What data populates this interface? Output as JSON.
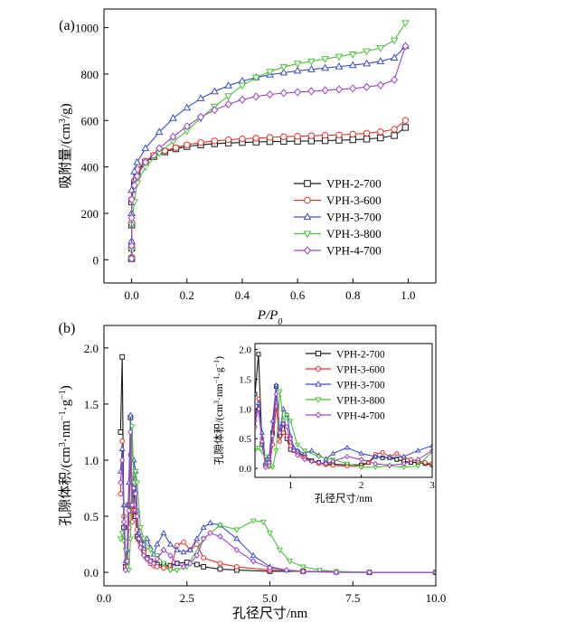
{
  "colors": {
    "VPH-2-700": "#1a1a1a",
    "VPH-3-600": "#e8332f",
    "VPH-3-700": "#3a4fc4",
    "VPH-3-800": "#4cc23a",
    "VPH-4-700": "#9b45c9"
  },
  "markers": {
    "VPH-2-700": "square",
    "VPH-3-600": "circle",
    "VPH-3-700": "triangle-up",
    "VPH-3-800": "triangle-down",
    "VPH-4-700": "diamond"
  },
  "chart_data": [
    {
      "panel_label": "(a)",
      "type": "line",
      "xlabel": "P/P0",
      "xlabel_main": "P/P",
      "xlabel_sub": "0",
      "ylabel": "吸附量/(cm3/g)",
      "ylabel_main": "吸附量/(cm",
      "ylabel_sup": "3",
      "ylabel_end": "/g)",
      "xlim": [
        -0.1,
        1.1
      ],
      "ylim": [
        -100,
        1080
      ],
      "xticks": [
        0.0,
        0.2,
        0.4,
        0.6,
        0.8,
        1.0
      ],
      "xtick_labels": [
        "0.0",
        "0.2",
        "0.4",
        "0.6",
        "0.8",
        "1.0"
      ],
      "yticks": [
        0,
        200,
        400,
        600,
        800,
        1000
      ],
      "ytick_labels": [
        "0",
        "200",
        "400",
        "600",
        "800",
        "1000"
      ],
      "legend": [
        "VPH-2-700",
        "VPH-3-600",
        "VPH-3-700",
        "VPH-3-800",
        "VPH-4-700"
      ],
      "legend_position": "right",
      "series": [
        {
          "name": "VPH-2-700",
          "x": [
            0.0,
            0.0,
            0.0,
            0.0,
            0.01,
            0.02,
            0.05,
            0.08,
            0.12,
            0.16,
            0.2,
            0.25,
            0.3,
            0.35,
            0.4,
            0.45,
            0.5,
            0.55,
            0.6,
            0.65,
            0.7,
            0.75,
            0.8,
            0.85,
            0.9,
            0.95,
            0.99
          ],
          "y": [
            5,
            50,
            150,
            250,
            330,
            380,
            420,
            445,
            465,
            478,
            488,
            495,
            500,
            503,
            505,
            507,
            509,
            510,
            511,
            512,
            513,
            515,
            517,
            520,
            525,
            535,
            570
          ]
        },
        {
          "name": "VPH-3-600",
          "x": [
            0.0,
            0.0,
            0.0,
            0.0,
            0.01,
            0.02,
            0.05,
            0.08,
            0.12,
            0.16,
            0.2,
            0.25,
            0.3,
            0.35,
            0.4,
            0.45,
            0.5,
            0.55,
            0.6,
            0.65,
            0.7,
            0.75,
            0.8,
            0.85,
            0.9,
            0.95,
            0.99
          ],
          "y": [
            10,
            60,
            160,
            260,
            340,
            390,
            425,
            450,
            470,
            483,
            495,
            505,
            512,
            517,
            521,
            524,
            527,
            530,
            532,
            534,
            536,
            538,
            541,
            545,
            551,
            562,
            600
          ]
        },
        {
          "name": "VPH-3-700",
          "x": [
            0.0,
            0.0,
            0.0,
            0.0,
            0.01,
            0.02,
            0.05,
            0.1,
            0.15,
            0.2,
            0.25,
            0.3,
            0.35,
            0.4,
            0.45,
            0.5,
            0.55,
            0.6,
            0.65,
            0.7,
            0.75,
            0.8,
            0.85,
            0.9,
            0.95,
            0.99
          ],
          "y": [
            10,
            80,
            200,
            300,
            380,
            420,
            480,
            550,
            610,
            655,
            695,
            725,
            750,
            770,
            785,
            797,
            806,
            814,
            820,
            826,
            832,
            838,
            845,
            855,
            870,
            920
          ]
        },
        {
          "name": "VPH-3-800",
          "x": [
            0.0,
            0.0,
            0.0,
            0.01,
            0.02,
            0.05,
            0.1,
            0.15,
            0.2,
            0.25,
            0.3,
            0.35,
            0.4,
            0.45,
            0.5,
            0.55,
            0.6,
            0.65,
            0.7,
            0.75,
            0.8,
            0.85,
            0.9,
            0.95,
            0.99
          ],
          "y": [
            5,
            40,
            150,
            250,
            330,
            400,
            460,
            510,
            555,
            610,
            660,
            705,
            750,
            785,
            810,
            830,
            845,
            855,
            865,
            875,
            885,
            898,
            912,
            945,
            1020
          ]
        },
        {
          "name": "VPH-4-700",
          "x": [
            0.0,
            0.0,
            0.0,
            0.0,
            0.01,
            0.02,
            0.05,
            0.1,
            0.15,
            0.2,
            0.25,
            0.3,
            0.35,
            0.4,
            0.45,
            0.5,
            0.55,
            0.6,
            0.65,
            0.7,
            0.75,
            0.8,
            0.85,
            0.9,
            0.95,
            0.99
          ],
          "y": [
            5,
            60,
            180,
            260,
            320,
            360,
            420,
            480,
            530,
            575,
            615,
            645,
            670,
            690,
            703,
            712,
            718,
            722,
            726,
            730,
            734,
            738,
            744,
            752,
            775,
            920
          ]
        }
      ]
    },
    {
      "panel_label": "(b)",
      "type": "line",
      "xlabel": "孔径尺寸/nm",
      "ylabel": "孔隙体积/(cm3·nm−1·g−1)",
      "ylabel_main": "孔隙体积/(cm",
      "ylabel_sup1": "3",
      "ylabel_mid": "·nm",
      "ylabel_sup2": "−1",
      "ylabel_mid2": "·g",
      "ylabel_sup3": "−1",
      "ylabel_end": ")",
      "xlim": [
        0,
        10
      ],
      "ylim": [
        -0.12,
        2.2
      ],
      "xticks": [
        0.0,
        2.5,
        5.0,
        7.5,
        10.0
      ],
      "xtick_labels": [
        "0.0",
        "2.5",
        "5.0",
        "7.5",
        "10.0"
      ],
      "yticks": [
        0.0,
        0.5,
        1.0,
        1.5,
        2.0
      ],
      "ytick_labels": [
        "0.0",
        "0.5",
        "1.0",
        "1.5",
        "2.0"
      ],
      "series": [
        {
          "name": "VPH-2-700",
          "x": [
            0.5,
            0.55,
            0.6,
            0.65,
            0.7,
            0.75,
            0.8,
            0.85,
            0.9,
            0.95,
            1.0,
            1.05,
            1.1,
            1.2,
            1.3,
            1.4,
            1.5,
            1.6,
            1.8,
            2.0,
            2.2,
            2.5,
            2.8,
            3.0,
            3.5,
            4.0,
            5.0,
            6.0,
            8.0,
            10.0
          ],
          "y": [
            1.25,
            1.92,
            0.4,
            0.05,
            0.1,
            0.6,
            1.38,
            0.55,
            0.75,
            0.5,
            0.32,
            0.3,
            0.28,
            0.2,
            0.13,
            0.1,
            0.08,
            0.07,
            0.06,
            0.06,
            0.08,
            0.09,
            0.07,
            0.05,
            0.03,
            0.02,
            0.01,
            0.01,
            0.0,
            0.0
          ]
        },
        {
          "name": "VPH-3-600",
          "x": [
            0.5,
            0.55,
            0.6,
            0.65,
            0.7,
            0.75,
            0.8,
            0.85,
            0.9,
            0.95,
            1.0,
            1.05,
            1.1,
            1.2,
            1.3,
            1.4,
            1.5,
            1.6,
            1.8,
            2.0,
            2.2,
            2.4,
            2.6,
            2.8,
            3.0,
            3.5,
            4.0,
            5.0,
            6.0,
            8.0,
            10.0
          ],
          "y": [
            0.7,
            1.17,
            0.5,
            0.05,
            0.03,
            0.4,
            1.05,
            0.45,
            0.6,
            0.55,
            0.38,
            0.3,
            0.25,
            0.18,
            0.12,
            0.08,
            0.06,
            0.05,
            0.04,
            0.03,
            0.24,
            0.27,
            0.2,
            0.25,
            0.13,
            0.08,
            0.05,
            0.02,
            0.01,
            0.0,
            0.0
          ]
        },
        {
          "name": "VPH-3-700",
          "x": [
            0.5,
            0.55,
            0.6,
            0.65,
            0.7,
            0.75,
            0.8,
            0.85,
            0.9,
            0.95,
            1.0,
            1.05,
            1.1,
            1.2,
            1.3,
            1.4,
            1.5,
            1.6,
            1.8,
            2.0,
            2.2,
            2.4,
            2.6,
            2.8,
            3.0,
            3.2,
            3.5,
            4.0,
            4.5,
            5.0,
            5.5,
            6.0,
            7.0,
            8.0,
            10.0
          ],
          "y": [
            0.9,
            1.1,
            0.6,
            0.1,
            0.2,
            0.8,
            1.4,
            0.6,
            1.0,
            0.9,
            0.55,
            0.35,
            0.3,
            0.25,
            0.3,
            0.22,
            0.16,
            0.25,
            0.35,
            0.25,
            0.2,
            0.18,
            0.2,
            0.3,
            0.4,
            0.44,
            0.42,
            0.3,
            0.15,
            0.05,
            0.02,
            0.01,
            0.0,
            0.0,
            0.0
          ]
        },
        {
          "name": "VPH-3-800",
          "x": [
            0.5,
            0.55,
            0.6,
            0.65,
            0.7,
            0.75,
            0.8,
            0.85,
            0.9,
            0.95,
            1.0,
            1.1,
            1.2,
            1.4,
            1.6,
            1.8,
            2.0,
            2.2,
            2.5,
            3.0,
            3.5,
            4.0,
            4.5,
            4.8,
            5.0,
            5.3,
            5.6,
            6.0,
            6.5,
            7.0,
            8.0,
            10.0
          ],
          "y": [
            0.3,
            0.35,
            0.28,
            0.2,
            0.05,
            0.02,
            0.3,
            1.3,
            0.8,
            0.9,
            0.8,
            0.4,
            0.3,
            0.2,
            0.15,
            0.08,
            0.02,
            0.02,
            0.05,
            0.3,
            0.42,
            0.38,
            0.46,
            0.45,
            0.35,
            0.2,
            0.1,
            0.05,
            0.02,
            0.01,
            0.0,
            0.0
          ]
        },
        {
          "name": "VPH-4-700",
          "x": [
            0.5,
            0.55,
            0.6,
            0.65,
            0.7,
            0.75,
            0.8,
            0.85,
            0.9,
            0.95,
            1.0,
            1.05,
            1.1,
            1.2,
            1.3,
            1.4,
            1.5,
            1.6,
            1.8,
            2.0,
            2.2,
            2.4,
            2.6,
            2.8,
            3.0,
            3.2,
            3.5,
            4.0,
            4.5,
            5.0,
            5.5,
            6.0,
            7.0,
            8.0,
            10.0
          ],
          "y": [
            0.8,
            1.0,
            0.45,
            0.02,
            0.1,
            0.55,
            1.25,
            0.6,
            0.75,
            0.7,
            0.5,
            0.3,
            0.22,
            0.15,
            0.12,
            0.1,
            0.08,
            0.12,
            0.2,
            0.15,
            0.08,
            0.05,
            0.08,
            0.15,
            0.3,
            0.35,
            0.32,
            0.2,
            0.1,
            0.04,
            0.02,
            0.01,
            0.0,
            0.0,
            0.0
          ]
        }
      ]
    },
    {
      "panel_label": "",
      "type": "line",
      "inset": true,
      "xlabel": "孔径尺寸/nm",
      "ylabel": "孔隙体积/(cm3·nm−1·g−1)",
      "ylabel_main": "孔隙体积/(cm",
      "ylabel_sup1": "3",
      "ylabel_mid": "·nm",
      "ylabel_sup2": "−1",
      "ylabel_mid2": "·g",
      "ylabel_sup3": "−1",
      "ylabel_end": ")",
      "xlim": [
        0.5,
        3
      ],
      "ylim": [
        -0.15,
        2.1
      ],
      "xticks": [
        1,
        2,
        3
      ],
      "xtick_labels": [
        "1",
        "2",
        "3"
      ],
      "yticks": [
        0.0,
        0.5,
        1.0,
        1.5,
        2.0
      ],
      "ytick_labels": [
        "0.0",
        "0.5",
        "1.0",
        "1.5",
        "2.0"
      ],
      "legend": [
        "VPH-2-700",
        "VPH-3-600",
        "VPH-3-700",
        "VPH-3-800",
        "VPH-4-700"
      ],
      "legend_position": "top",
      "series": [
        {
          "name": "VPH-2-700",
          "x": [
            0.5,
            0.55,
            0.6,
            0.65,
            0.7,
            0.75,
            0.8,
            0.85,
            0.9,
            0.95,
            1.0,
            1.05,
            1.1,
            1.2,
            1.3,
            1.4,
            1.5,
            1.6,
            1.8,
            2.0,
            2.1,
            2.2,
            2.3,
            2.4,
            2.5,
            2.6,
            2.7,
            2.8,
            2.9,
            3.0
          ],
          "y": [
            1.25,
            1.92,
            0.4,
            0.05,
            0.1,
            0.6,
            1.38,
            0.55,
            0.75,
            0.5,
            0.32,
            0.3,
            0.28,
            0.2,
            0.13,
            0.1,
            0.08,
            0.07,
            0.06,
            0.06,
            0.1,
            0.2,
            0.18,
            0.18,
            0.15,
            0.12,
            0.1,
            0.1,
            0.08,
            0.06
          ]
        },
        {
          "name": "VPH-3-600",
          "x": [
            0.5,
            0.55,
            0.6,
            0.65,
            0.7,
            0.75,
            0.8,
            0.85,
            0.9,
            0.95,
            1.0,
            1.05,
            1.1,
            1.2,
            1.3,
            1.4,
            1.5,
            1.6,
            1.8,
            2.0,
            2.1,
            2.2,
            2.3,
            2.4,
            2.5,
            2.6,
            2.7,
            2.8,
            2.9,
            3.0
          ],
          "y": [
            0.7,
            1.17,
            0.5,
            0.05,
            0.03,
            0.4,
            1.05,
            0.45,
            0.6,
            0.55,
            0.38,
            0.3,
            0.25,
            0.18,
            0.12,
            0.08,
            0.06,
            0.05,
            0.04,
            0.03,
            0.1,
            0.24,
            0.27,
            0.2,
            0.25,
            0.18,
            0.15,
            0.12,
            0.1,
            0.08
          ]
        },
        {
          "name": "VPH-3-700",
          "x": [
            0.5,
            0.55,
            0.6,
            0.65,
            0.7,
            0.75,
            0.8,
            0.85,
            0.9,
            0.95,
            1.0,
            1.05,
            1.1,
            1.2,
            1.3,
            1.4,
            1.5,
            1.6,
            1.8,
            2.0,
            2.2,
            2.4,
            2.6,
            2.8,
            3.0
          ],
          "y": [
            0.9,
            1.1,
            0.6,
            0.1,
            0.2,
            0.8,
            1.4,
            0.6,
            1.0,
            0.9,
            0.55,
            0.35,
            0.3,
            0.25,
            0.3,
            0.22,
            0.16,
            0.25,
            0.35,
            0.25,
            0.2,
            0.18,
            0.2,
            0.3,
            0.38
          ]
        },
        {
          "name": "VPH-3-800",
          "x": [
            0.5,
            0.55,
            0.6,
            0.65,
            0.7,
            0.75,
            0.8,
            0.85,
            0.9,
            0.95,
            1.0,
            1.1,
            1.2,
            1.4,
            1.6,
            1.8,
            2.0,
            2.2,
            2.4,
            2.6,
            2.8,
            3.0
          ],
          "y": [
            0.3,
            0.35,
            0.28,
            0.2,
            0.05,
            0.02,
            0.3,
            1.3,
            0.8,
            0.9,
            0.8,
            0.4,
            0.3,
            0.2,
            0.15,
            0.08,
            0.02,
            0.02,
            0.04,
            0.02,
            0.04,
            0.28
          ]
        },
        {
          "name": "VPH-4-700",
          "x": [
            0.5,
            0.55,
            0.6,
            0.65,
            0.7,
            0.75,
            0.8,
            0.85,
            0.9,
            0.95,
            1.0,
            1.05,
            1.1,
            1.2,
            1.3,
            1.4,
            1.5,
            1.6,
            1.8,
            2.0,
            2.2,
            2.4,
            2.6,
            2.8,
            3.0
          ],
          "y": [
            0.8,
            1.0,
            0.45,
            0.02,
            0.1,
            0.55,
            1.25,
            0.6,
            0.75,
            0.7,
            0.5,
            0.3,
            0.22,
            0.15,
            0.12,
            0.1,
            0.08,
            0.12,
            0.2,
            0.15,
            0.08,
            0.05,
            0.08,
            0.15,
            0.3
          ]
        }
      ]
    }
  ]
}
